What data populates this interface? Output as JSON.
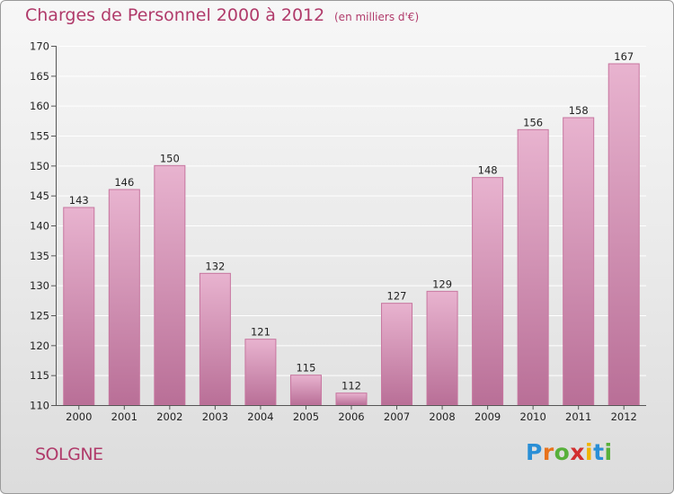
{
  "header": {
    "title": "Charges de Personnel 2000 à 2012",
    "subtitle": "(en milliers d'€)"
  },
  "footer": {
    "location": "SOLGNE",
    "logo": {
      "text": "Proxiti",
      "letter_colors": [
        "#2a8fd6",
        "#e8731c",
        "#57b03a",
        "#d22f2f",
        "#f0b400",
        "#2a8fd6",
        "#57b03a"
      ]
    }
  },
  "colors": {
    "bar_top": "#e8b3cf",
    "bar_bottom": "#b96f97",
    "bar_edge": "#c7759f",
    "title": "#b03a6a"
  },
  "chart_data": {
    "type": "bar",
    "title": "Charges de Personnel 2000 à 2012",
    "subtitle": "(en milliers d'€)",
    "categories": [
      "2000",
      "2001",
      "2002",
      "2003",
      "2004",
      "2005",
      "2006",
      "2007",
      "2008",
      "2009",
      "2010",
      "2011",
      "2012"
    ],
    "values": [
      143,
      146,
      150,
      132,
      121,
      115,
      112,
      127,
      129,
      148,
      156,
      158,
      167
    ],
    "ylim": [
      110,
      170
    ],
    "yticks": [
      110,
      115,
      120,
      125,
      130,
      135,
      140,
      145,
      150,
      155,
      160,
      165,
      170
    ],
    "grid": true,
    "data_labels": true
  }
}
